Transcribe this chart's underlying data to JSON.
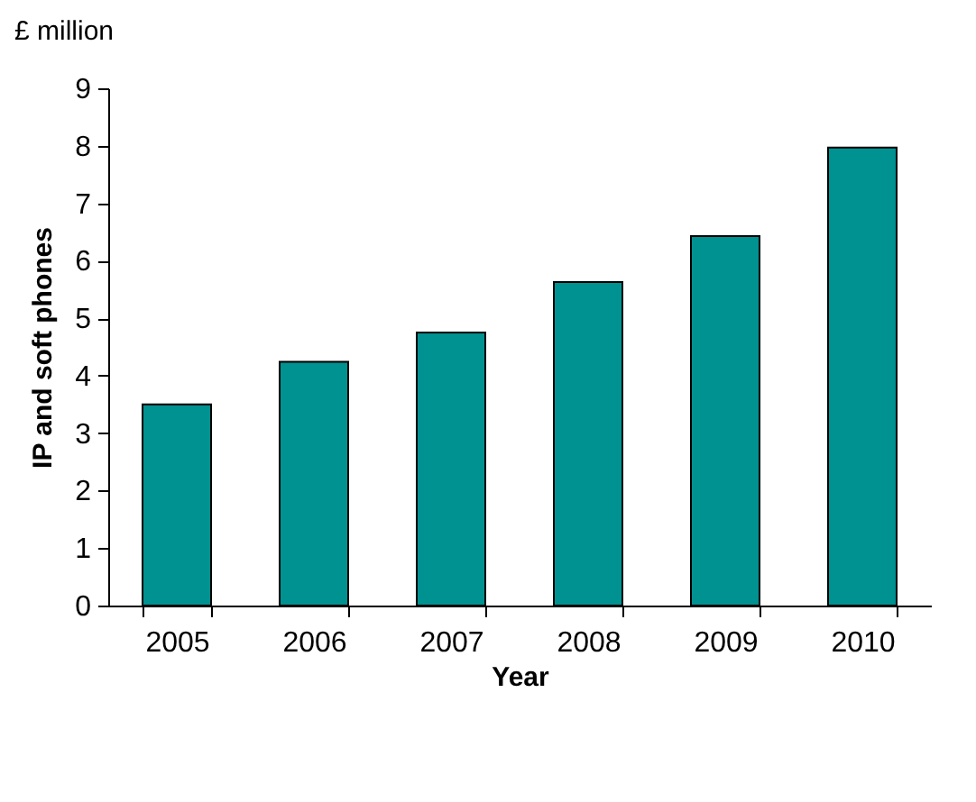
{
  "chart_data": {
    "type": "bar",
    "subtitle": "£ million",
    "xlabel": "Year",
    "ylabel": "IP and soft phones",
    "categories": [
      "2005",
      "2006",
      "2007",
      "2008",
      "2009",
      "2010"
    ],
    "values": [
      3.5,
      4.24,
      4.75,
      5.63,
      6.43,
      7.97
    ],
    "color": "#009191",
    "ylim": [
      0,
      9
    ],
    "yticks": [
      0,
      1,
      2,
      3,
      4,
      5,
      6,
      7,
      8,
      9
    ],
    "grid": false
  }
}
